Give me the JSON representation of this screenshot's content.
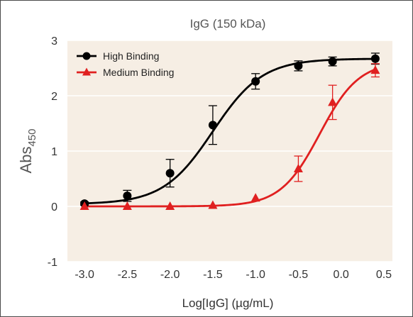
{
  "chart_data": {
    "type": "line",
    "title": "IgG (150 kDa)",
    "xlabel": "Log[IgG] (µg/mL)",
    "ylabel": "Abs",
    "ylabel_subscript": "450",
    "xlim": [
      -3.2,
      0.6
    ],
    "ylim": [
      -1,
      3
    ],
    "xticks": [
      "-3.0",
      "-2.5",
      "-2.0",
      "-1.5",
      "-1.0",
      "-0.5",
      "0.0",
      "0.5"
    ],
    "xtick_values": [
      -3.0,
      -2.5,
      -2.0,
      -1.5,
      -1.0,
      -0.5,
      0.0,
      0.5
    ],
    "yticks": [
      "-1",
      "0",
      "1",
      "2",
      "3"
    ],
    "ytick_values": [
      -1,
      0,
      1,
      2,
      3
    ],
    "grid": "horizontal",
    "legend_position": "top-left",
    "background": "#f6eee4",
    "series": [
      {
        "name": "High Binding",
        "color": "#000000",
        "marker": "circle",
        "x": [
          -3.0,
          -2.5,
          -2.0,
          -1.5,
          -1.0,
          -0.5,
          -0.1,
          0.4
        ],
        "y": [
          0.05,
          0.19,
          0.6,
          1.47,
          2.26,
          2.54,
          2.62,
          2.67
        ],
        "err": [
          0.03,
          0.1,
          0.25,
          0.35,
          0.14,
          0.09,
          0.08,
          0.1
        ],
        "fit": {
          "bottom": 0.04,
          "top": 2.67,
          "ec50": -1.5,
          "slope": 1.5
        }
      },
      {
        "name": "Medium Binding",
        "color": "#e02020",
        "marker": "triangle",
        "x": [
          -3.0,
          -2.5,
          -2.0,
          -1.5,
          -1.0,
          -0.5,
          -0.1,
          0.4
        ],
        "y": [
          0.0,
          0.0,
          0.0,
          0.02,
          0.15,
          0.68,
          1.88,
          2.46
        ],
        "err": [
          0.0,
          0.0,
          0.0,
          0.0,
          0.0,
          0.23,
          0.31,
          0.12
        ],
        "fit": {
          "bottom": 0.0,
          "top": 2.62,
          "ec50": -0.25,
          "slope": 1.9
        }
      }
    ]
  }
}
